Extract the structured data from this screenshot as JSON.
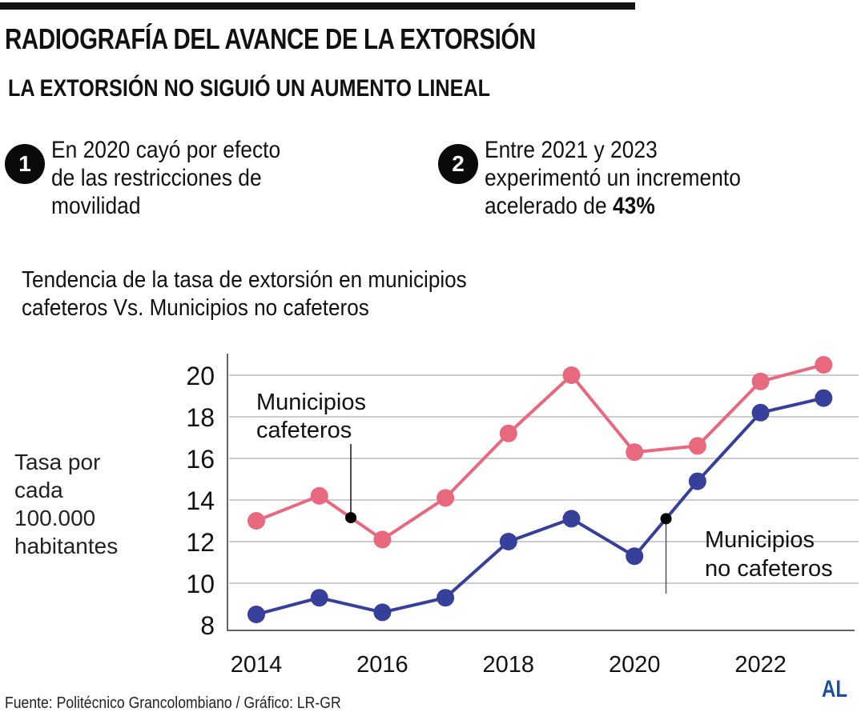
{
  "header": {
    "title": "RADIOGRAFÍA DEL AVANCE DE LA EXTORSIÓN",
    "subtitle": "LA EXTORSIÓN NO SIGUIÓ UN AUMENTO LINEAL"
  },
  "notes": [
    {
      "number": "1",
      "lines": [
        "En 2020 cayó por efecto",
        "de las restricciones de",
        "movilidad"
      ]
    },
    {
      "number": "2",
      "lines": [
        "Entre 2021 y 2023",
        "experimentó un incremento"
      ],
      "last_prefix": "acelerado de ",
      "last_bold": "43%"
    }
  ],
  "chart_title_lines": [
    "Tendencia de la tasa de extorsión en municipios",
    "cafeteros Vs. Municipios no cafeteros"
  ],
  "colors": {
    "cafeteros": "#e8687e",
    "no_cafeteros": "#36409a",
    "grid": "#cccccc",
    "axis": "#666666",
    "logo": "#1c4fa1"
  },
  "chart_data": {
    "type": "line",
    "title": "Tendencia de la tasa de extorsión en municipios cafeteros Vs. Municipios no cafeteros",
    "xlabel": "",
    "ylabel": "Tasa por cada 100.000 habitantes",
    "ylabel_lines": [
      "Tasa por",
      "cada",
      "100.000",
      "habitantes"
    ],
    "x": [
      2014,
      2015,
      2016,
      2017,
      2018,
      2019,
      2020,
      2021,
      2022,
      2023
    ],
    "xticks": [
      "2014",
      "2016",
      "2018",
      "2020",
      "2022"
    ],
    "yticks": [
      "8",
      "10",
      "12",
      "14",
      "16",
      "18",
      "20"
    ],
    "ylim": [
      8,
      20.9
    ],
    "grid": true,
    "series": [
      {
        "name": "Municipios cafeteros",
        "label_lines": [
          "Municipios",
          "cafeteros"
        ],
        "values": [
          13.0,
          14.2,
          12.1,
          14.1,
          17.2,
          20.0,
          16.3,
          16.6,
          19.7,
          20.5
        ]
      },
      {
        "name": "Municipios no cafeteros",
        "label_lines": [
          "Municipios",
          "no cafeteros"
        ],
        "values": [
          8.5,
          9.3,
          8.6,
          9.3,
          12.0,
          13.1,
          11.3,
          14.9,
          18.2,
          18.9
        ]
      }
    ]
  },
  "footer": {
    "source": "Fuente: Politécnico Grancolombiano / Gráfico: LR-GR",
    "logo": "AL"
  }
}
